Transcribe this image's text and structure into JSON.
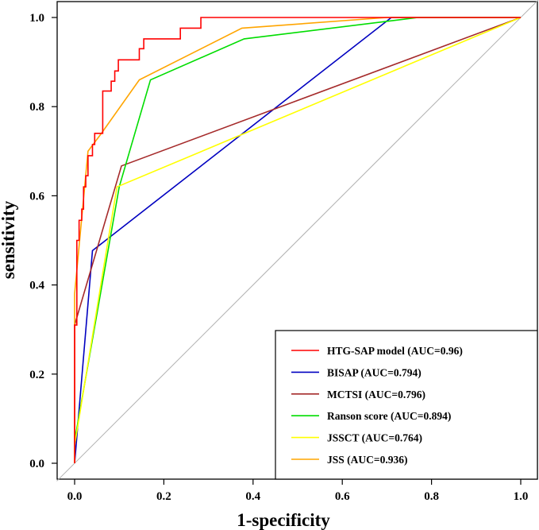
{
  "chart_data": {
    "type": "line",
    "title": "",
    "xlabel": "1-specificity",
    "ylabel": "sensitivity",
    "xlim": [
      -0.04,
      1.04
    ],
    "ylim": [
      -0.04,
      1.04
    ],
    "x_ticks": [
      "0.0",
      "0.2",
      "0.4",
      "0.6",
      "0.8",
      "1.0"
    ],
    "y_ticks": [
      "0.0",
      "0.2",
      "0.4",
      "0.6",
      "0.8",
      "1.0"
    ],
    "grid": false,
    "legend_position": "bottom-right",
    "reference_line": {
      "name": "chance",
      "color": "#b0b0b0",
      "points": [
        [
          0,
          0
        ],
        [
          1,
          1
        ]
      ]
    },
    "series": [
      {
        "name": "HTG-SAP model",
        "legend_label": "HTG-SAP model (AUC=0.96)",
        "color": "#ff0000",
        "points": [
          [
            0,
            0
          ],
          [
            0,
            0.31
          ],
          [
            0.005,
            0.31
          ],
          [
            0.005,
            0.5
          ],
          [
            0.01,
            0.5
          ],
          [
            0.01,
            0.545
          ],
          [
            0.016,
            0.545
          ],
          [
            0.016,
            0.57
          ],
          [
            0.02,
            0.57
          ],
          [
            0.02,
            0.62
          ],
          [
            0.025,
            0.62
          ],
          [
            0.025,
            0.645
          ],
          [
            0.03,
            0.645
          ],
          [
            0.03,
            0.69
          ],
          [
            0.04,
            0.69
          ],
          [
            0.04,
            0.715
          ],
          [
            0.045,
            0.715
          ],
          [
            0.045,
            0.74
          ],
          [
            0.063,
            0.74
          ],
          [
            0.063,
            0.835
          ],
          [
            0.082,
            0.835
          ],
          [
            0.082,
            0.857
          ],
          [
            0.09,
            0.857
          ],
          [
            0.09,
            0.88
          ],
          [
            0.098,
            0.88
          ],
          [
            0.098,
            0.905
          ],
          [
            0.125,
            0.905
          ],
          [
            0.125,
            0.905
          ],
          [
            0.145,
            0.905
          ],
          [
            0.145,
            0.93
          ],
          [
            0.155,
            0.93
          ],
          [
            0.155,
            0.952
          ],
          [
            0.21,
            0.952
          ],
          [
            0.21,
            0.952
          ],
          [
            0.237,
            0.952
          ],
          [
            0.237,
            0.976
          ],
          [
            0.283,
            0.976
          ],
          [
            0.283,
            1
          ],
          [
            1,
            1
          ]
        ]
      },
      {
        "name": "BISAP",
        "legend_label": "BISAP  (AUC=0.794)",
        "color": "#0000c0",
        "points": [
          [
            0,
            0
          ],
          [
            0.04,
            0.477
          ],
          [
            0.71,
            1
          ],
          [
            1,
            1
          ]
        ]
      },
      {
        "name": "MCTSI",
        "legend_label": "MCTSI  (AUC=0.796)",
        "color": "#a52a2a",
        "points": [
          [
            0,
            0
          ],
          [
            0,
            0.31
          ],
          [
            0.105,
            0.667
          ],
          [
            1,
            1
          ]
        ]
      },
      {
        "name": "Ranson score",
        "legend_label": "Ranson score (AUC=0.894)",
        "color": "#00dd00",
        "points": [
          [
            0,
            0
          ],
          [
            0,
            0.05
          ],
          [
            0.1,
            0.62
          ],
          [
            0.17,
            0.86
          ],
          [
            0.38,
            0.952
          ],
          [
            0.77,
            1
          ],
          [
            1,
            1
          ]
        ]
      },
      {
        "name": "JSSCT",
        "legend_label": "JSSCT  (AUC=0.764)",
        "color": "#ffff00",
        "points": [
          [
            0,
            0
          ],
          [
            0,
            0.04
          ],
          [
            0.075,
            0.5
          ],
          [
            0.095,
            0.62
          ],
          [
            1,
            1
          ]
        ]
      },
      {
        "name": "JSS",
        "legend_label": "JSS (AUC=0.936)",
        "color": "#ffa500",
        "points": [
          [
            0,
            0
          ],
          [
            0,
            0.38
          ],
          [
            0.03,
            0.7
          ],
          [
            0.06,
            0.74
          ],
          [
            0.145,
            0.86
          ],
          [
            0.375,
            0.976
          ],
          [
            0.7,
            1
          ],
          [
            1,
            1
          ]
        ]
      }
    ]
  }
}
